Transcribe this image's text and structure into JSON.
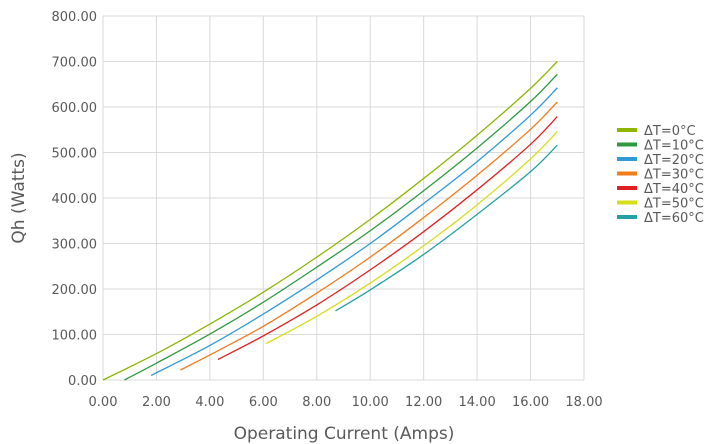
{
  "chart_data": {
    "type": "line",
    "title": "",
    "xlabel": "Operating Current (Amps)",
    "ylabel": "Qh (Watts)",
    "xlim": [
      0,
      18
    ],
    "ylim": [
      0,
      800
    ],
    "x_ticks": [
      0,
      2,
      4,
      6,
      8,
      10,
      12,
      14,
      16,
      18
    ],
    "x_tick_labels": [
      "0.00",
      "2.00",
      "4.00",
      "6.00",
      "8.00",
      "10.00",
      "12.00",
      "14.00",
      "16.00",
      "18.00"
    ],
    "y_ticks": [
      0,
      100,
      200,
      300,
      400,
      500,
      600,
      700,
      800
    ],
    "y_tick_labels": [
      "0.00",
      "100.00",
      "200.00",
      "300.00",
      "400.00",
      "500.00",
      "600.00",
      "700.00",
      "800.00"
    ],
    "grid": true,
    "legend_position": "right",
    "series": [
      {
        "name": "ΔT=0°C",
        "color": "#8db600",
        "points": [
          [
            0,
            0
          ],
          [
            2,
            58
          ],
          [
            4,
            123
          ],
          [
            6,
            193
          ],
          [
            8,
            270
          ],
          [
            10,
            353
          ],
          [
            12,
            443
          ],
          [
            14,
            538
          ],
          [
            16,
            641
          ],
          [
            17,
            700
          ]
        ]
      },
      {
        "name": "ΔT=10°C",
        "color": "#2e9a3e",
        "points": [
          [
            0.8,
            0
          ],
          [
            2,
            37
          ],
          [
            4,
            101
          ],
          [
            6,
            171
          ],
          [
            8,
            248
          ],
          [
            10,
            328
          ],
          [
            12,
            416
          ],
          [
            14,
            510
          ],
          [
            16,
            612
          ],
          [
            17,
            672
          ]
        ]
      },
      {
        "name": "ΔT=20°C",
        "color": "#2e9bd6",
        "points": [
          [
            1.8,
            10
          ],
          [
            4,
            76
          ],
          [
            6,
            145
          ],
          [
            8,
            220
          ],
          [
            10,
            300
          ],
          [
            12,
            388
          ],
          [
            14,
            480
          ],
          [
            16,
            582
          ],
          [
            17,
            642
          ]
        ]
      },
      {
        "name": "ΔT=30°C",
        "color": "#f07c1c",
        "points": [
          [
            2.9,
            22
          ],
          [
            4,
            55
          ],
          [
            6,
            118
          ],
          [
            8,
            191
          ],
          [
            10,
            270
          ],
          [
            12,
            357
          ],
          [
            14,
            450
          ],
          [
            16,
            551
          ],
          [
            17,
            611
          ]
        ]
      },
      {
        "name": "ΔT=40°C",
        "color": "#e02020",
        "points": [
          [
            4.3,
            45
          ],
          [
            6,
            97
          ],
          [
            8,
            165
          ],
          [
            10,
            242
          ],
          [
            12,
            326
          ],
          [
            14,
            418
          ],
          [
            16,
            518
          ],
          [
            17,
            579
          ]
        ]
      },
      {
        "name": "ΔT=50°C",
        "color": "#d6de1a",
        "points": [
          [
            6.1,
            80
          ],
          [
            8,
            140
          ],
          [
            10,
            213
          ],
          [
            12,
            295
          ],
          [
            14,
            385
          ],
          [
            16,
            486
          ],
          [
            17,
            546
          ]
        ]
      },
      {
        "name": "ΔT=60°C",
        "color": "#22a0a8",
        "points": [
          [
            8.7,
            152
          ],
          [
            10,
            198
          ],
          [
            12,
            276
          ],
          [
            14,
            364
          ],
          [
            16,
            458
          ],
          [
            17,
            516
          ]
        ]
      }
    ]
  }
}
